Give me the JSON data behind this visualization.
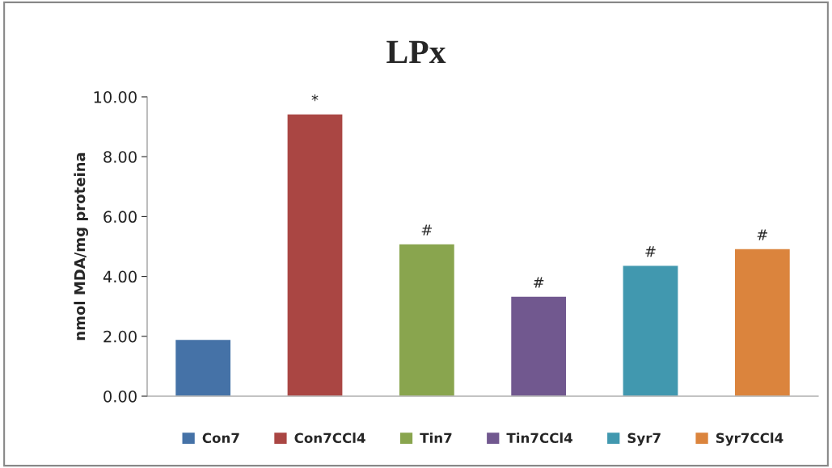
{
  "chart_data": {
    "type": "bar",
    "title": "LPx",
    "ylabel": "nmol MDA/mg proteina",
    "categories": [
      null,
      null,
      null,
      null,
      null,
      null
    ],
    "series": [
      {
        "name": "Con7",
        "color": "#4572a7",
        "values": [
          1.9,
          null,
          null,
          null,
          null,
          null
        ]
      },
      {
        "name": "Con7CCl4",
        "color": "#aa4643",
        "values": [
          null,
          9.43,
          null,
          null,
          null,
          null
        ]
      },
      {
        "name": "Tin7",
        "color": "#89a54e",
        "values": [
          null,
          null,
          5.09,
          null,
          null,
          null
        ]
      },
      {
        "name": "Tin7CCl4",
        "color": "#71588f",
        "values": [
          null,
          null,
          null,
          3.34,
          null,
          null
        ]
      },
      {
        "name": "Syr7",
        "color": "#4198af",
        "values": [
          null,
          null,
          null,
          null,
          4.37,
          null
        ]
      },
      {
        "name": "Syr7CCl4",
        "color": "#db843d",
        "values": [
          null,
          null,
          null,
          null,
          null,
          4.93
        ]
      }
    ],
    "ylim": [
      0,
      10
    ],
    "yticks": [
      {
        "value": 0,
        "label": "0.00"
      },
      {
        "value": 2,
        "label": "2.00"
      },
      {
        "value": 4,
        "label": "4.00"
      },
      {
        "value": 6,
        "label": "6.00"
      },
      {
        "value": 8,
        "label": "8.00"
      },
      {
        "value": 10,
        "label": "10.00"
      }
    ],
    "annotations": [
      {
        "text": "*",
        "y": 9.43
      },
      {
        "text": "#",
        "y": 5.09
      },
      {
        "text": "#",
        "y": 3.34
      },
      {
        "text": "#",
        "y": 4.37
      },
      {
        "text": "#",
        "y": 4.93
      }
    ],
    "tick_labels": "y",
    "legend": "bottom",
    "grid": false
  }
}
